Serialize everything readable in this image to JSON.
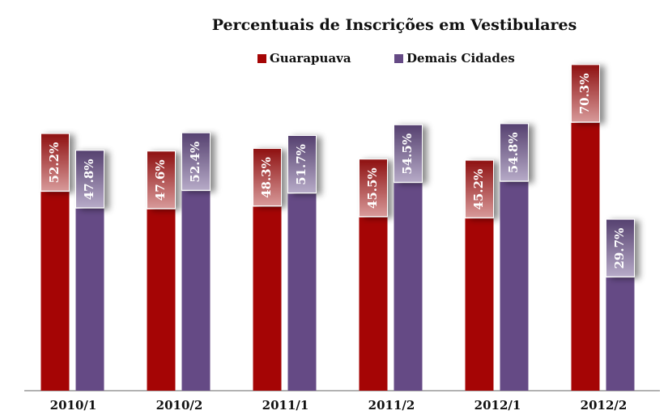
{
  "chart_data": {
    "type": "bar",
    "title": "Percentuais de Inscrições em Vestibulares",
    "categories": [
      "2010/1",
      "2010/2",
      "2011/1",
      "2011/2",
      "2012/1",
      "2012/2"
    ],
    "series": [
      {
        "name": "Guarapuava",
        "color": "#a50505",
        "values": [
          52.2,
          47.6,
          48.3,
          45.5,
          45.2,
          70.3
        ],
        "value_labels": [
          "52.2%",
          "47.6%",
          "48.3%",
          "45.5%",
          "45.2%",
          "70.3%"
        ]
      },
      {
        "name": "Demais Cidades",
        "color": "#654a85",
        "values": [
          47.8,
          52.4,
          51.7,
          54.5,
          54.8,
          29.7
        ],
        "value_labels": [
          "47.8%",
          "52.4%",
          "51.7%",
          "54.5%",
          "54.8%",
          "29.7%"
        ]
      }
    ],
    "ylim": [
      0,
      100
    ]
  }
}
